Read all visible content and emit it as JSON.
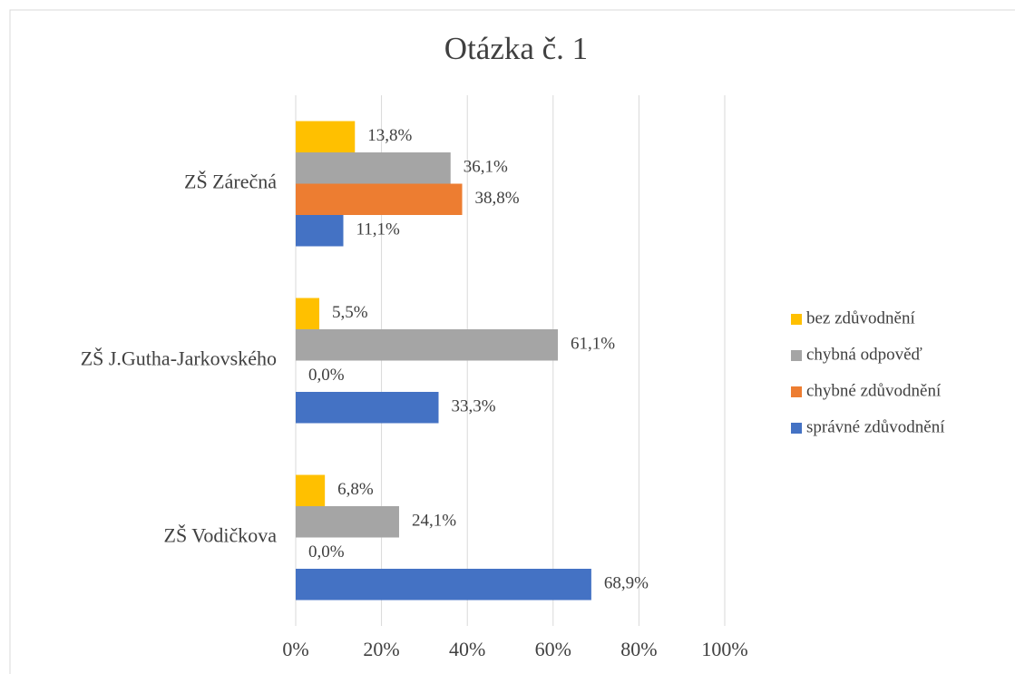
{
  "chart_data": {
    "type": "bar",
    "orientation": "horizontal",
    "title": "Otázka č. 1",
    "categories": [
      "ZŠ Zárečná",
      "ZŠ J.Gutha-Jarkovského",
      "ZŠ Vodičkova"
    ],
    "series": [
      {
        "name": "bez zdůvodnění",
        "color": "#ffc000",
        "values": [
          13.8,
          5.5,
          6.8
        ],
        "value_labels": [
          "13,8%",
          "5,5%",
          "6,8%"
        ]
      },
      {
        "name": "chybná odpověď",
        "color": "#a5a5a5",
        "values": [
          36.1,
          61.1,
          24.1
        ],
        "value_labels": [
          "36,1%",
          "61,1%",
          "24,1%"
        ]
      },
      {
        "name": "chybné zdůvodnění",
        "color": "#ed7d31",
        "values": [
          38.8,
          0.0,
          0.0
        ],
        "value_labels": [
          "38,8%",
          "0,0%",
          "0,0%"
        ]
      },
      {
        "name": "správné zdůvodnění",
        "color": "#4472c4",
        "values": [
          11.1,
          33.3,
          68.9
        ],
        "value_labels": [
          "11,1%",
          "33,3%",
          "68,9%"
        ]
      }
    ],
    "xlim": [
      0,
      100
    ],
    "xticks": [
      {
        "value": 0,
        "label": "0%"
      },
      {
        "value": 20,
        "label": "20%"
      },
      {
        "value": 40,
        "label": "40%"
      },
      {
        "value": 60,
        "label": "60%"
      },
      {
        "value": 80,
        "label": "80%"
      },
      {
        "value": 100,
        "label": "100%"
      }
    ],
    "grid": true,
    "legend": "right"
  }
}
